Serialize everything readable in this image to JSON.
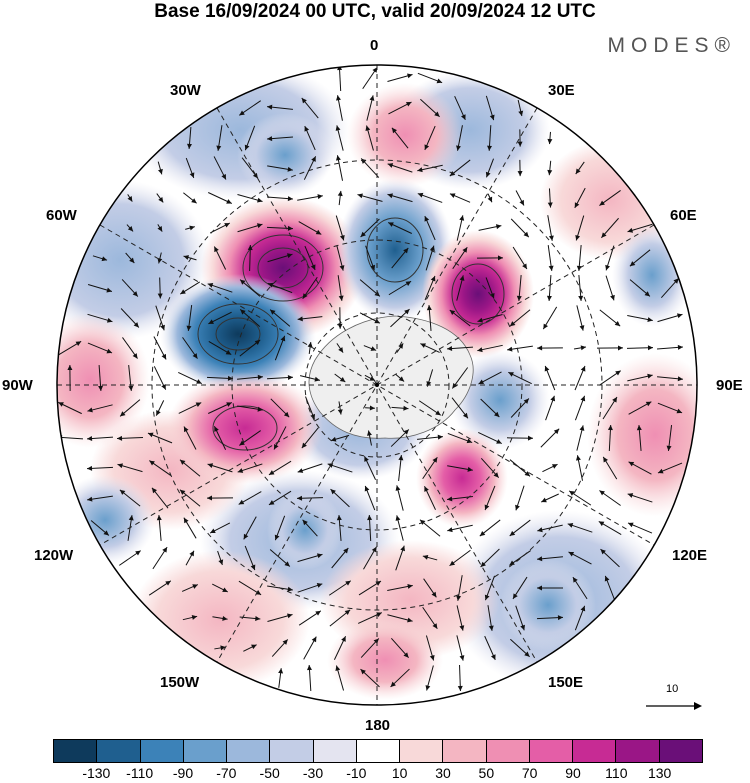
{
  "title": "Base 16/09/2024 00 UTC, valid 20/09/2024 12 UTC",
  "brand": "MODES®",
  "longitude_labels": {
    "lon_0": "0",
    "lon_30e": "30E",
    "lon_60e": "60E",
    "lon_90e": "90E",
    "lon_120e": "120E",
    "lon_150e": "150E",
    "lon_180": "180",
    "lon_150w": "150W",
    "lon_120w": "120W",
    "lon_90w": "90W",
    "lon_60w": "60W",
    "lon_30w": "30W"
  },
  "vector_scale_label": "10",
  "colorbar": {
    "colors": [
      "#0e3a5c",
      "#1f5f8f",
      "#3c82b8",
      "#6a9fcc",
      "#9cb8dc",
      "#c3cde6",
      "#e4e4f0",
      "#ffffff",
      "#f8d9d9",
      "#f4b6c2",
      "#ef8fb3",
      "#e45ea7",
      "#c72b94",
      "#9a1686",
      "#6a0f78"
    ],
    "tick_labels": [
      "-130",
      "-110",
      "-90",
      "-70",
      "-50",
      "-30",
      "-10",
      "10",
      "30",
      "50",
      "70",
      "90",
      "110",
      "130"
    ]
  }
}
